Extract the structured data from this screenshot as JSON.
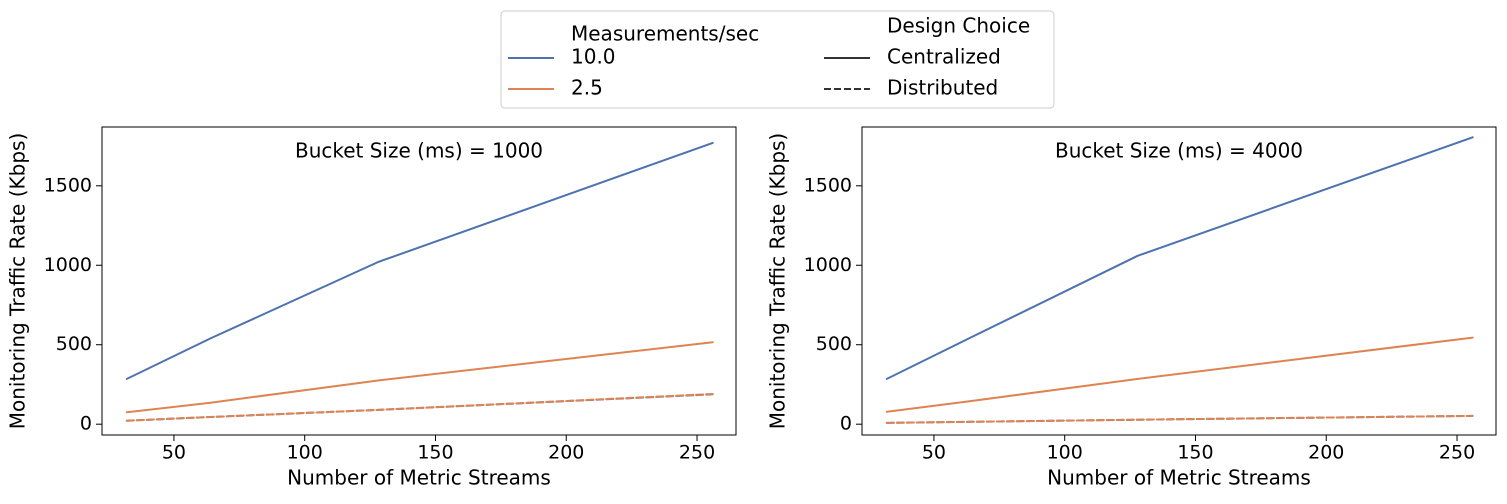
{
  "legend": {
    "hue_title": "Measurements/sec",
    "hue_items": [
      {
        "label": "10.0",
        "color": "#4c72b0"
      },
      {
        "label": "2.5",
        "color": "#dd8452"
      }
    ],
    "style_title": "Design Choice",
    "style_items": [
      {
        "label": "Centralized",
        "dash": "solid"
      },
      {
        "label": "Distributed",
        "dash": "dashed"
      }
    ]
  },
  "chart_data": [
    {
      "type": "line",
      "title": "Bucket Size (ms) = 1000",
      "xlabel": "Number of Metric Streams",
      "ylabel": "Monitoring Traffic Rate (Kbps)",
      "xlim": [
        22.5,
        264.9
      ],
      "ylim": [
        -68,
        1870
      ],
      "xticks": [
        50,
        100,
        150,
        200,
        250
      ],
      "yticks": [
        0,
        500,
        1000,
        1500
      ],
      "x": [
        32,
        64,
        128,
        256
      ],
      "series": [
        {
          "hue": "10.0",
          "style": "Centralized",
          "color": "#4c72b0",
          "dashed": false,
          "values": [
            285,
            540,
            1020,
            1770
          ]
        },
        {
          "hue": "2.5",
          "style": "Centralized",
          "color": "#dd8452",
          "dashed": false,
          "values": [
            75,
            135,
            275,
            515
          ]
        },
        {
          "hue": "10.0",
          "style": "Distributed",
          "color": "#4c72b0",
          "dashed": true,
          "values": [
            22,
            45,
            90,
            188
          ]
        },
        {
          "hue": "2.5",
          "style": "Distributed",
          "color": "#dd8452",
          "dashed": true,
          "values": [
            22,
            45,
            90,
            190
          ]
        }
      ]
    },
    {
      "type": "line",
      "title": "Bucket Size (ms) = 4000",
      "xlabel": "Number of Metric Streams",
      "ylabel": "Monitoring Traffic Rate (Kbps)",
      "xlim": [
        22.5,
        264.9
      ],
      "ylim": [
        -68,
        1870
      ],
      "xticks": [
        50,
        100,
        150,
        200,
        250
      ],
      "yticks": [
        0,
        500,
        1000,
        1500
      ],
      "x": [
        32,
        64,
        128,
        256
      ],
      "series": [
        {
          "hue": "10.0",
          "style": "Centralized",
          "color": "#4c72b0",
          "dashed": false,
          "values": [
            285,
            545,
            1060,
            1805
          ]
        },
        {
          "hue": "2.5",
          "style": "Centralized",
          "color": "#dd8452",
          "dashed": false,
          "values": [
            78,
            145,
            285,
            545
          ]
        },
        {
          "hue": "10.0",
          "style": "Distributed",
          "color": "#4c72b0",
          "dashed": true,
          "values": [
            8,
            15,
            28,
            52
          ]
        },
        {
          "hue": "2.5",
          "style": "Distributed",
          "color": "#dd8452",
          "dashed": true,
          "values": [
            8,
            15,
            28,
            52
          ]
        }
      ]
    }
  ]
}
